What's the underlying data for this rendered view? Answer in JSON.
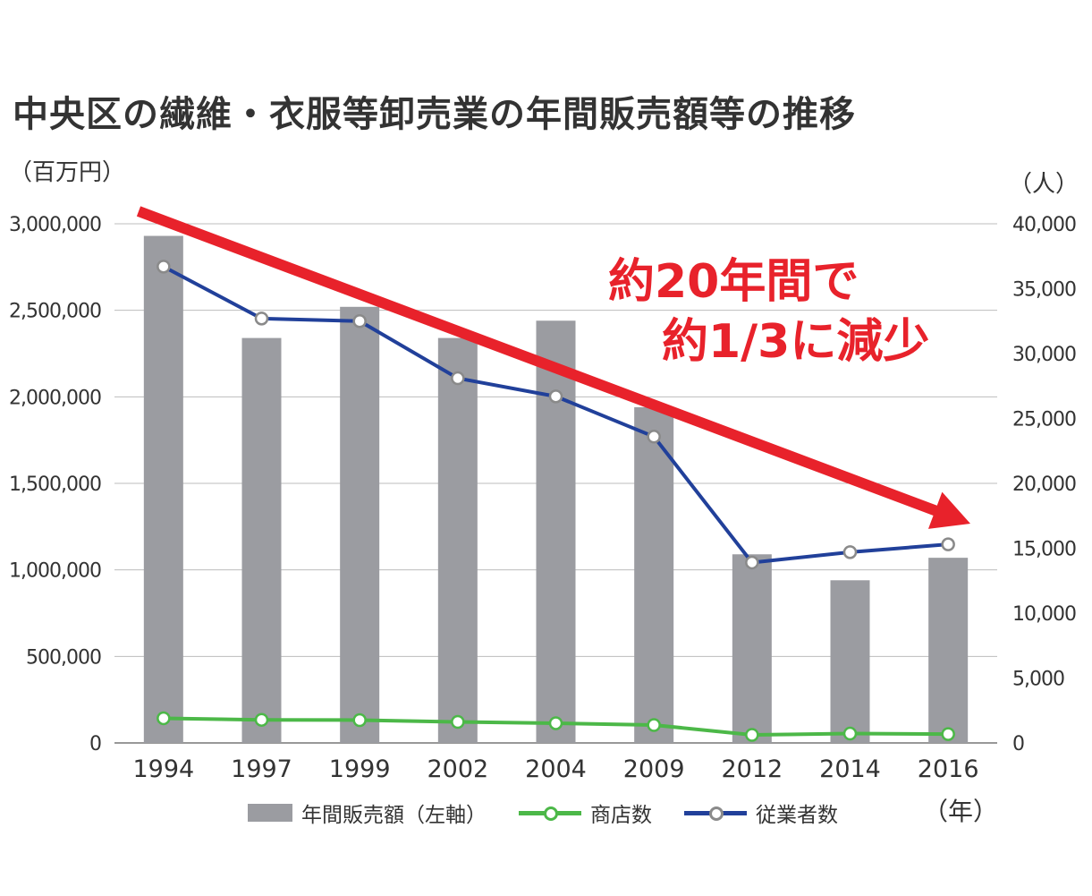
{
  "chart_data": {
    "type": "bar",
    "title": "中央区の繊維・衣服等卸売業の年間販売額等の推移",
    "left_unit": "（百万円）",
    "right_unit": "（人）",
    "x_unit": "（年）",
    "categories": [
      "1994",
      "1997",
      "1999",
      "2002",
      "2004",
      "2009",
      "2012",
      "2014",
      "2016"
    ],
    "left_axis": {
      "ylim": [
        0,
        3000000
      ],
      "ticks": [
        0,
        500000,
        1000000,
        1500000,
        2000000,
        2500000,
        3000000
      ],
      "tick_labels": [
        "0",
        "500,000",
        "1,000,000",
        "1,500,000",
        "2,000,000",
        "2,500,000",
        "3,000,000"
      ]
    },
    "right_axis": {
      "ylim": [
        0,
        40000
      ],
      "ticks": [
        0,
        5000,
        10000,
        15000,
        20000,
        25000,
        30000,
        35000,
        40000
      ],
      "tick_labels": [
        "0",
        "5,000",
        "10,000",
        "15,000",
        "20,000",
        "25,000",
        "30,000",
        "35,000",
        "40,000"
      ]
    },
    "series": [
      {
        "name": "年間販売額（左軸）",
        "kind": "bar",
        "axis": "left",
        "color": "#9b9ca1",
        "values": [
          2930000,
          2340000,
          2520000,
          2340000,
          2440000,
          1940000,
          1090000,
          940000,
          1070000
        ]
      },
      {
        "name": "商店数",
        "kind": "line",
        "axis": "right",
        "color": "#4cb848",
        "values": [
          1900,
          1780,
          1760,
          1620,
          1520,
          1380,
          620,
          720,
          680
        ]
      },
      {
        "name": "従業者数",
        "kind": "line",
        "axis": "right",
        "color": "#21409a",
        "values": [
          36700,
          32700,
          32500,
          28100,
          26700,
          23600,
          13900,
          14700,
          15300
        ]
      }
    ],
    "annotation": {
      "text_line1": "約20年間で",
      "text_line2": "約1/3に減少",
      "color": "#e8222b"
    },
    "grid": true,
    "legend_position": "bottom"
  }
}
